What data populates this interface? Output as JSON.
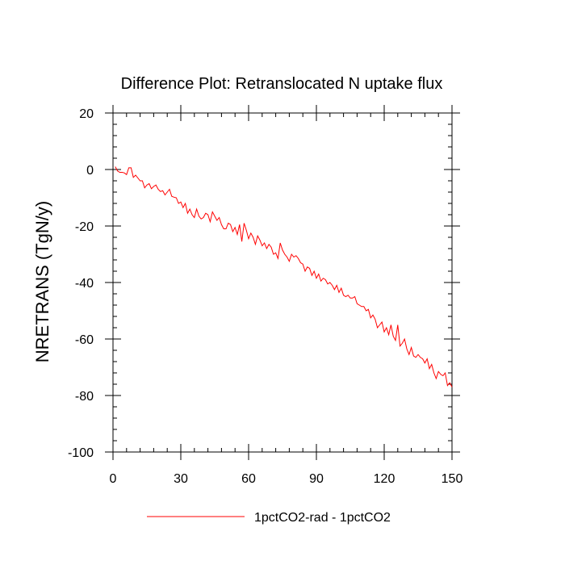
{
  "chart_data": {
    "type": "line",
    "title": "Difference Plot: Retranslocated N uptake flux",
    "xlabel": "",
    "ylabel": "NRETRANS  (TgN/y)",
    "xlim": [
      0,
      150
    ],
    "ylim": [
      -100,
      20
    ],
    "x_ticks": [
      "0",
      "30",
      "60",
      "90",
      "120",
      "150"
    ],
    "y_ticks": [
      "20",
      "0",
      "-20",
      "-40",
      "-60",
      "-80",
      "-100"
    ],
    "grid": false,
    "legend_position": "bottom-center",
    "series": [
      {
        "name": "1pctCO2-rad - 1pctCO2",
        "color": "#ff0000",
        "x": [
          1,
          2,
          3,
          4,
          5,
          6,
          7,
          8,
          9,
          10,
          11,
          12,
          13,
          14,
          15,
          16,
          17,
          18,
          19,
          20,
          21,
          22,
          23,
          24,
          25,
          26,
          27,
          28,
          29,
          30,
          31,
          32,
          33,
          34,
          35,
          36,
          37,
          38,
          39,
          40,
          41,
          42,
          43,
          44,
          45,
          46,
          47,
          48,
          49,
          50,
          51,
          52,
          53,
          54,
          55,
          56,
          57,
          58,
          59,
          60,
          61,
          62,
          63,
          64,
          65,
          66,
          67,
          68,
          69,
          70,
          71,
          72,
          73,
          74,
          75,
          76,
          77,
          78,
          79,
          80,
          81,
          82,
          83,
          84,
          85,
          86,
          87,
          88,
          89,
          90,
          91,
          92,
          93,
          94,
          95,
          96,
          97,
          98,
          99,
          100,
          101,
          102,
          103,
          104,
          105,
          106,
          107,
          108,
          109,
          110,
          111,
          112,
          113,
          114,
          115,
          116,
          117,
          118,
          119,
          120,
          121,
          122,
          123,
          124,
          125,
          126,
          127,
          128,
          129,
          130,
          131,
          132,
          133,
          134,
          135,
          136,
          137,
          138,
          139,
          140,
          141,
          142,
          143,
          144,
          145,
          146,
          147,
          148,
          149,
          150
        ],
        "values": [
          1.0,
          -0.5,
          -1.0,
          -1.0,
          -1.2,
          -1.8,
          0.6,
          0.6,
          -2.8,
          -2.0,
          -3.0,
          -4.0,
          -4.0,
          -6.5,
          -5.5,
          -5.0,
          -6.8,
          -6.0,
          -5.5,
          -7.0,
          -7.8,
          -7.5,
          -9.0,
          -8.0,
          -7.0,
          -9.5,
          -9.8,
          -10.0,
          -12.0,
          -11.5,
          -13.5,
          -12.0,
          -15.5,
          -14.0,
          -16.0,
          -17.0,
          -14.0,
          -16.5,
          -17.5,
          -17.0,
          -15.5,
          -16.0,
          -18.5,
          -15.0,
          -16.5,
          -18.0,
          -17.0,
          -19.5,
          -21.0,
          -21.0,
          -19.0,
          -19.5,
          -22.0,
          -20.5,
          -23.0,
          -19.5,
          -25.5,
          -19.0,
          -21.5,
          -24.5,
          -22.5,
          -24.0,
          -26.5,
          -23.5,
          -25.0,
          -27.0,
          -26.0,
          -28.0,
          -26.5,
          -27.5,
          -30.0,
          -29.5,
          -31.5,
          -26.0,
          -28.5,
          -30.0,
          -31.0,
          -32.5,
          -30.0,
          -31.0,
          -30.5,
          -31.5,
          -33.0,
          -33.5,
          -36.0,
          -34.5,
          -35.0,
          -37.5,
          -36.0,
          -38.5,
          -37.0,
          -39.5,
          -38.5,
          -39.0,
          -40.5,
          -40.0,
          -41.0,
          -42.5,
          -41.0,
          -43.5,
          -42.0,
          -44.5,
          -45.0,
          -44.5,
          -45.5,
          -45.5,
          -45.0,
          -47.5,
          -48.0,
          -48.5,
          -48.5,
          -50.0,
          -49.5,
          -52.5,
          -51.5,
          -53.0,
          -56.0,
          -55.0,
          -54.0,
          -57.5,
          -56.0,
          -58.5,
          -55.0,
          -59.0,
          -60.5,
          -55.0,
          -62.5,
          -61.5,
          -60.0,
          -63.5,
          -65.5,
          -63.0,
          -66.0,
          -66.5,
          -65.5,
          -66.5,
          -67.0,
          -68.5,
          -67.0,
          -70.5,
          -69.0,
          -72.0,
          -74.0,
          -71.5,
          -72.5,
          -73.0,
          -72.0,
          -76.5,
          -75.5,
          -77.0
        ]
      }
    ]
  }
}
